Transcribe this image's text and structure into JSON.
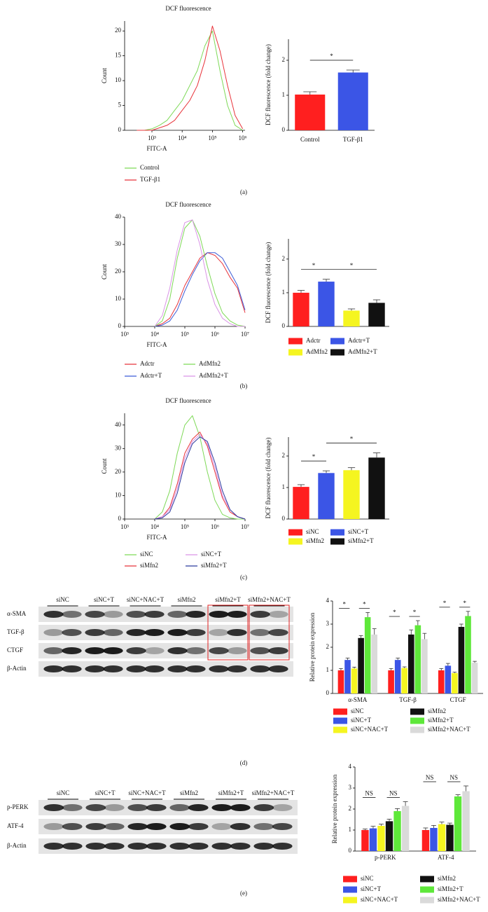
{
  "panel_labels": [
    "(a)",
    "(b)",
    "(c)",
    "(d)",
    "(e)"
  ],
  "blots": [
    {
      "groups": [
        "siNC",
        "siNC+T",
        "siNC+NAC+T",
        "siMfn2",
        "siMfn2+T",
        "siMfn2+NAC+T"
      ],
      "rows": [
        "α-SMA",
        "TGF-β",
        "CTGF",
        "β-Actin"
      ]
    },
    {
      "groups": [
        "siNC",
        "siNC+T",
        "siNC+NAC+T",
        "siMfn2",
        "siMfn2+T",
        "siMfn2+NAC+T"
      ],
      "rows": [
        "p-PERK",
        "ATF-4",
        "β-Actin"
      ]
    }
  ],
  "chart_data": [
    {
      "type": "line",
      "title": "DCF fluorescence",
      "xlabel": "FITC-A",
      "ylabel": "Count",
      "log_x": true,
      "xlim": [
        125,
        1200000
      ],
      "xticks": [
        {
          "value": 1000,
          "label": "10³"
        },
        {
          "value": 10000,
          "label": "10⁴"
        },
        {
          "value": 100000,
          "label": "10⁵"
        },
        {
          "value": 1000000,
          "label": "10⁶"
        }
      ],
      "ylim": [
        0,
        22
      ],
      "yticks": [
        0,
        5,
        10,
        15,
        20
      ],
      "x": [
        316,
        562,
        1000,
        1778,
        3162,
        5623,
        10000,
        17783,
        31623,
        56234,
        100000,
        177828,
        316228,
        562341,
        1000000
      ],
      "series": [
        {
          "name": "Control",
          "color": "#7ed957",
          "values": [
            0,
            0,
            0.3,
            1,
            2,
            4,
            6,
            9,
            12,
            17,
            20,
            12,
            5,
            1,
            0
          ]
        },
        {
          "name": "TGF-β1",
          "color": "#e8333a",
          "values": [
            0,
            0,
            0,
            0.5,
            1,
            2,
            4,
            6,
            9,
            14,
            21,
            16,
            9,
            3,
            0.3
          ]
        }
      ]
    },
    {
      "type": "bar",
      "ylabel": "DCF fluorescence (fold change)",
      "ylim": [
        0,
        2.6
      ],
      "yticks": [
        0,
        1,
        2
      ],
      "legend": false,
      "categories": [
        "Control",
        "TGF-β1"
      ],
      "values": [
        1.02,
        1.65
      ],
      "errors": [
        0.08,
        0.07
      ],
      "colors": [
        "#ff1f1f",
        "#3b55e6"
      ],
      "brackets": [
        {
          "label": "*",
          "between": [
            0,
            1
          ]
        }
      ]
    },
    {
      "type": "line",
      "title": "DCF fluorescence",
      "xlabel": "FITC-A",
      "ylabel": "Count",
      "log_x": true,
      "xlim": [
        1000,
        10000000
      ],
      "xticks": [
        {
          "value": 1000,
          "label": "10³"
        },
        {
          "value": 10000,
          "label": "10⁴"
        },
        {
          "value": 100000,
          "label": "10⁵"
        },
        {
          "value": 1000000,
          "label": "10⁶"
        },
        {
          "value": 10000000,
          "label": "10⁷"
        }
      ],
      "ylim": [
        0,
        40
      ],
      "yticks": [
        0,
        10,
        20,
        30,
        40
      ],
      "x": [
        10000,
        17783,
        31623,
        56234,
        100000,
        177828,
        316228,
        562341,
        1000000,
        1778279,
        3162278,
        5623413,
        10000000
      ],
      "series": [
        {
          "name": "Adctr",
          "color": "#e8333a",
          "values": [
            0,
            1,
            3,
            8,
            15,
            20,
            25,
            27,
            26,
            23,
            18,
            14,
            5
          ]
        },
        {
          "name": "Adctr+T",
          "color": "#3b5bd6",
          "values": [
            0,
            0.5,
            2,
            6,
            13,
            19,
            24,
            27,
            27,
            25,
            20,
            15,
            6
          ]
        },
        {
          "name": "AdMfn2",
          "color": "#7ed957",
          "values": [
            0,
            2,
            10,
            25,
            36,
            39,
            33,
            22,
            12,
            5,
            2,
            0.5,
            0
          ]
        },
        {
          "name": "AdMfn2+T",
          "color": "#d993e6",
          "values": [
            0,
            4,
            14,
            28,
            38,
            39,
            30,
            17,
            8,
            3,
            1,
            0,
            0
          ]
        }
      ]
    },
    {
      "type": "bar",
      "ylabel": "DCF fluorescence (fold change)",
      "ylim": [
        0,
        2.6
      ],
      "yticks": [
        0,
        1,
        2
      ],
      "legend": true,
      "categories": [
        "Adctr",
        "Adctr+T",
        "AdMfn2",
        "AdMfn2+T"
      ],
      "values": [
        1.0,
        1.33,
        0.47,
        0.7
      ],
      "errors": [
        0.07,
        0.07,
        0.05,
        0.09
      ],
      "colors": [
        "#ff1f1f",
        "#3b55e6",
        "#f5f520",
        "#111111"
      ],
      "brackets": [
        {
          "label": "*",
          "between": [
            0,
            1
          ]
        },
        {
          "label": "*",
          "between": [
            1,
            3
          ]
        }
      ]
    },
    {
      "type": "line",
      "title": "DCF fluorescence",
      "xlabel": "FITC-A",
      "ylabel": "Count",
      "log_x": true,
      "xlim": [
        1000,
        10000000
      ],
      "xticks": [
        {
          "value": 1000,
          "label": "10³"
        },
        {
          "value": 10000,
          "label": "10⁴"
        },
        {
          "value": 100000,
          "label": "10⁵"
        },
        {
          "value": 1000000,
          "label": "10⁶"
        },
        {
          "value": 10000000,
          "label": "10⁷"
        }
      ],
      "ylim": [
        0,
        45
      ],
      "yticks": [
        0,
        10,
        20,
        30,
        40
      ],
      "x": [
        10000,
        17783,
        31623,
        56234,
        100000,
        177828,
        316228,
        562341,
        1000000,
        1778279,
        3162278,
        5623413,
        10000000
      ],
      "series": [
        {
          "name": "siNC",
          "color": "#7ed957",
          "values": [
            0,
            3,
            12,
            28,
            40,
            44,
            35,
            20,
            8,
            2,
            0.5,
            0,
            0
          ]
        },
        {
          "name": "siMfn2",
          "color": "#e8333a",
          "values": [
            0,
            1,
            5,
            15,
            28,
            34,
            37,
            31,
            20,
            9,
            3,
            1,
            0
          ]
        },
        {
          "name": "siNC+T",
          "color": "#d993e6",
          "values": [
            0,
            1,
            4,
            13,
            26,
            33,
            36,
            32,
            22,
            10,
            4,
            1,
            0
          ]
        },
        {
          "name": "siMfn2+T",
          "color": "#2b3a9e",
          "values": [
            0,
            0.5,
            3,
            11,
            24,
            32,
            35,
            33,
            24,
            12,
            4,
            1,
            0
          ]
        }
      ]
    },
    {
      "type": "bar",
      "ylabel": "DCF fluorescence (fold change)",
      "ylim": [
        0,
        2.6
      ],
      "yticks": [
        0,
        1,
        2
      ],
      "legend": true,
      "categories": [
        "siNC",
        "siNC+T",
        "siMfn2",
        "siMfn2+T"
      ],
      "values": [
        1.02,
        1.46,
        1.55,
        1.95
      ],
      "errors": [
        0.07,
        0.07,
        0.08,
        0.15
      ],
      "colors": [
        "#ff1f1f",
        "#3b55e6",
        "#f5f520",
        "#111111"
      ],
      "brackets": [
        {
          "label": "*",
          "between": [
            0,
            1
          ]
        },
        {
          "label": "*",
          "between": [
            1,
            3
          ]
        }
      ]
    },
    {
      "type": "bar",
      "ylabel": "Relative protein expression",
      "ylim": [
        0,
        4
      ],
      "yticks": [
        0,
        1,
        2,
        3,
        4
      ],
      "legend": true,
      "categories": [
        "α-SMA",
        "TGF-β",
        "CTGF"
      ],
      "series": [
        {
          "name": "siNC",
          "color": "#ff1f1f",
          "values": [
            1.0,
            1.0,
            1.0
          ],
          "errors": [
            0.08,
            0.08,
            0.08
          ]
        },
        {
          "name": "siNC+T",
          "color": "#3b55e6",
          "values": [
            1.45,
            1.45,
            1.2
          ],
          "errors": [
            0.08,
            0.08,
            0.1
          ]
        },
        {
          "name": "siNC+NAC+T",
          "color": "#f5f520",
          "values": [
            1.08,
            1.1,
            0.88
          ],
          "errors": [
            0.06,
            0.05,
            0.04
          ]
        },
        {
          "name": "siMfn2",
          "color": "#111111",
          "values": [
            2.4,
            2.55,
            2.88
          ],
          "errors": [
            0.1,
            0.2,
            0.12
          ]
        },
        {
          "name": "siMfn2+T",
          "color": "#5ee83a",
          "values": [
            3.3,
            2.95,
            3.35
          ],
          "errors": [
            0.2,
            0.2,
            0.2
          ]
        },
        {
          "name": "siMfn2+NAC+T",
          "color": "#dadada",
          "values": [
            2.55,
            2.35,
            1.33
          ],
          "errors": [
            0.25,
            0.25,
            0.06
          ]
        }
      ],
      "brackets": [
        {
          "label": "*",
          "category": 0,
          "between": [
            0,
            1
          ]
        },
        {
          "label": "*",
          "category": 0,
          "between": [
            3,
            4
          ]
        },
        {
          "label": "*",
          "category": 1,
          "between": [
            0,
            1
          ]
        },
        {
          "label": "*",
          "category": 1,
          "between": [
            3,
            4
          ]
        },
        {
          "label": "*",
          "category": 2,
          "between": [
            0,
            1
          ]
        },
        {
          "label": "*",
          "category": 2,
          "between": [
            3,
            4
          ]
        }
      ]
    },
    {
      "type": "bar",
      "ylabel": "Relative protein expression",
      "ylim": [
        0,
        4
      ],
      "yticks": [
        0,
        1,
        2,
        3,
        4
      ],
      "legend": true,
      "categories": [
        "p-PERK",
        "ATF-4"
      ],
      "series": [
        {
          "name": "siNC",
          "color": "#ff1f1f",
          "values": [
            1.0,
            1.0
          ],
          "errors": [
            0.05,
            0.1
          ]
        },
        {
          "name": "siNC+T",
          "color": "#3b55e6",
          "values": [
            1.08,
            1.1
          ],
          "errors": [
            0.1,
            0.12
          ]
        },
        {
          "name": "siNC+NAC+T",
          "color": "#f5f520",
          "values": [
            1.2,
            1.28
          ],
          "errors": [
            0.08,
            0.1
          ]
        },
        {
          "name": "siMfn2",
          "color": "#111111",
          "values": [
            1.42,
            1.25
          ],
          "errors": [
            0.1,
            0.08
          ]
        },
        {
          "name": "siMfn2+T",
          "color": "#5ee83a",
          "values": [
            1.9,
            2.6
          ],
          "errors": [
            0.12,
            0.08
          ]
        },
        {
          "name": "siMfn2+NAC+T",
          "color": "#dadada",
          "values": [
            2.15,
            2.85
          ],
          "errors": [
            0.2,
            0.25
          ]
        }
      ],
      "brackets": [
        {
          "label": "NS",
          "category": 0,
          "between": [
            0,
            1
          ]
        },
        {
          "label": "NS",
          "category": 0,
          "between": [
            3,
            4
          ]
        },
        {
          "label": "NS",
          "category": 1,
          "between": [
            0,
            1
          ]
        },
        {
          "label": "NS",
          "category": 1,
          "between": [
            3,
            4
          ]
        }
      ]
    }
  ]
}
